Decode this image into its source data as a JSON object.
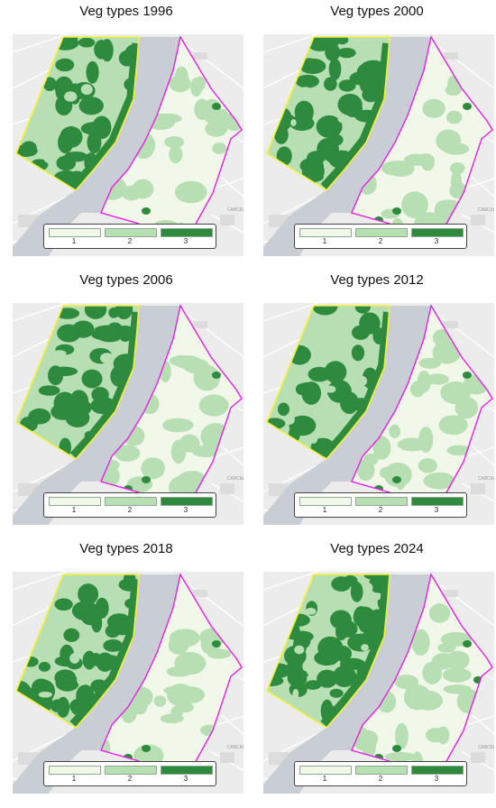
{
  "panels": [
    {
      "title": "Veg types 1996",
      "year": "1996",
      "dark_share": 0.55,
      "eastern_dark_patches": 2
    },
    {
      "title": "Veg types 2000",
      "year": "2000",
      "dark_share": 0.65,
      "eastern_dark_patches": 3
    },
    {
      "title": "Veg types 2006",
      "year": "2006",
      "dark_share": 0.55,
      "eastern_dark_patches": 3
    },
    {
      "title": "Veg types 2012",
      "year": "2012",
      "dark_share": 0.35,
      "eastern_dark_patches": 3
    },
    {
      "title": "Veg types 2018",
      "year": "2018",
      "dark_share": 0.7,
      "eastern_dark_patches": 3
    },
    {
      "title": "Veg types 2024",
      "year": "2024",
      "dark_share": 0.75,
      "eastern_dark_patches": 4
    }
  ],
  "legend": {
    "classes": [
      {
        "label": "1",
        "color": "#f1f8e9"
      },
      {
        "label": "2",
        "color": "#b7dfb3"
      },
      {
        "label": "3",
        "color": "#2e8b3e"
      }
    ]
  },
  "map_labels": {
    "district": "САВСКИ"
  },
  "colors": {
    "west_boundary": "#f5f03a",
    "east_boundary": "#e61ee6",
    "river": "#c9cdd4",
    "basemap": "#ececec"
  }
}
